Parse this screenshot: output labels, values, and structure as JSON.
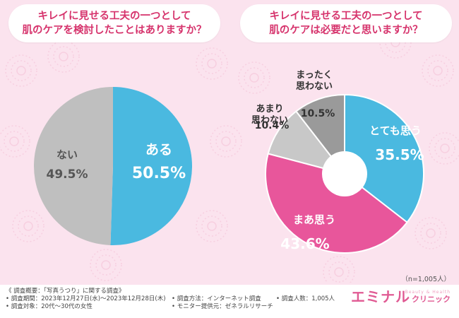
{
  "titles": {
    "left_line1": "キレイに見せる工夫の一つとして",
    "left_line2": "肌のケアを検討したことはありますか？",
    "right_line1": "キレイに見せる工夫の一つとして",
    "right_line2": "肌のケアは必要だと思いますか？"
  },
  "chart_data": [
    {
      "type": "pie",
      "title": "キレイに見せる工夫の一つとして肌のケアを検討したことはありますか？",
      "slices": [
        {
          "label": "ある",
          "value_text": "50.5%",
          "value": 50.5,
          "color": "#4ab9e0"
        },
        {
          "label": "ない",
          "value_text": "49.5%",
          "value": 49.5,
          "color": "#bfbfbf"
        }
      ]
    },
    {
      "type": "pie",
      "title": "キレイに見せる工夫の一つとして肌のケアは必要だと思いますか？",
      "slices": [
        {
          "label": "とても思う",
          "value_text": "35.5%",
          "value": 35.5,
          "color": "#4ab9e0"
        },
        {
          "label": "まあ思う",
          "value_text": "43.6%",
          "value": 43.6,
          "color": "#e8569b"
        },
        {
          "label": "あまり 思わない",
          "value_text": "10.4%",
          "value": 10.4,
          "color": "#c8c8c8"
        },
        {
          "label": "まったく 思わない",
          "value_text": "10.5%",
          "value": 10.5,
          "color": "#9a9a9a"
        }
      ]
    }
  ],
  "sample_note": "（n=1,005人）",
  "footer": {
    "overview": "《 調査概要：「写真うつり」に関する調査》",
    "period": "• 調査期間：2023年12月27日(水)〜2023年12月28日(木)",
    "target": "• 調査対象：20代〜30代の女性",
    "method": "• 調査方法：インターネット調査",
    "provider": "• モニター提供元：ゼネラルリサーチ",
    "count": "• 調査人数：1,005人"
  },
  "brand": {
    "name": "エミナル",
    "sub": "クリニック",
    "tagline": "Beauty & Health"
  },
  "colors": {
    "pink_text": "#d6336c",
    "blue": "#4ab9e0",
    "pink": "#e8569b"
  }
}
